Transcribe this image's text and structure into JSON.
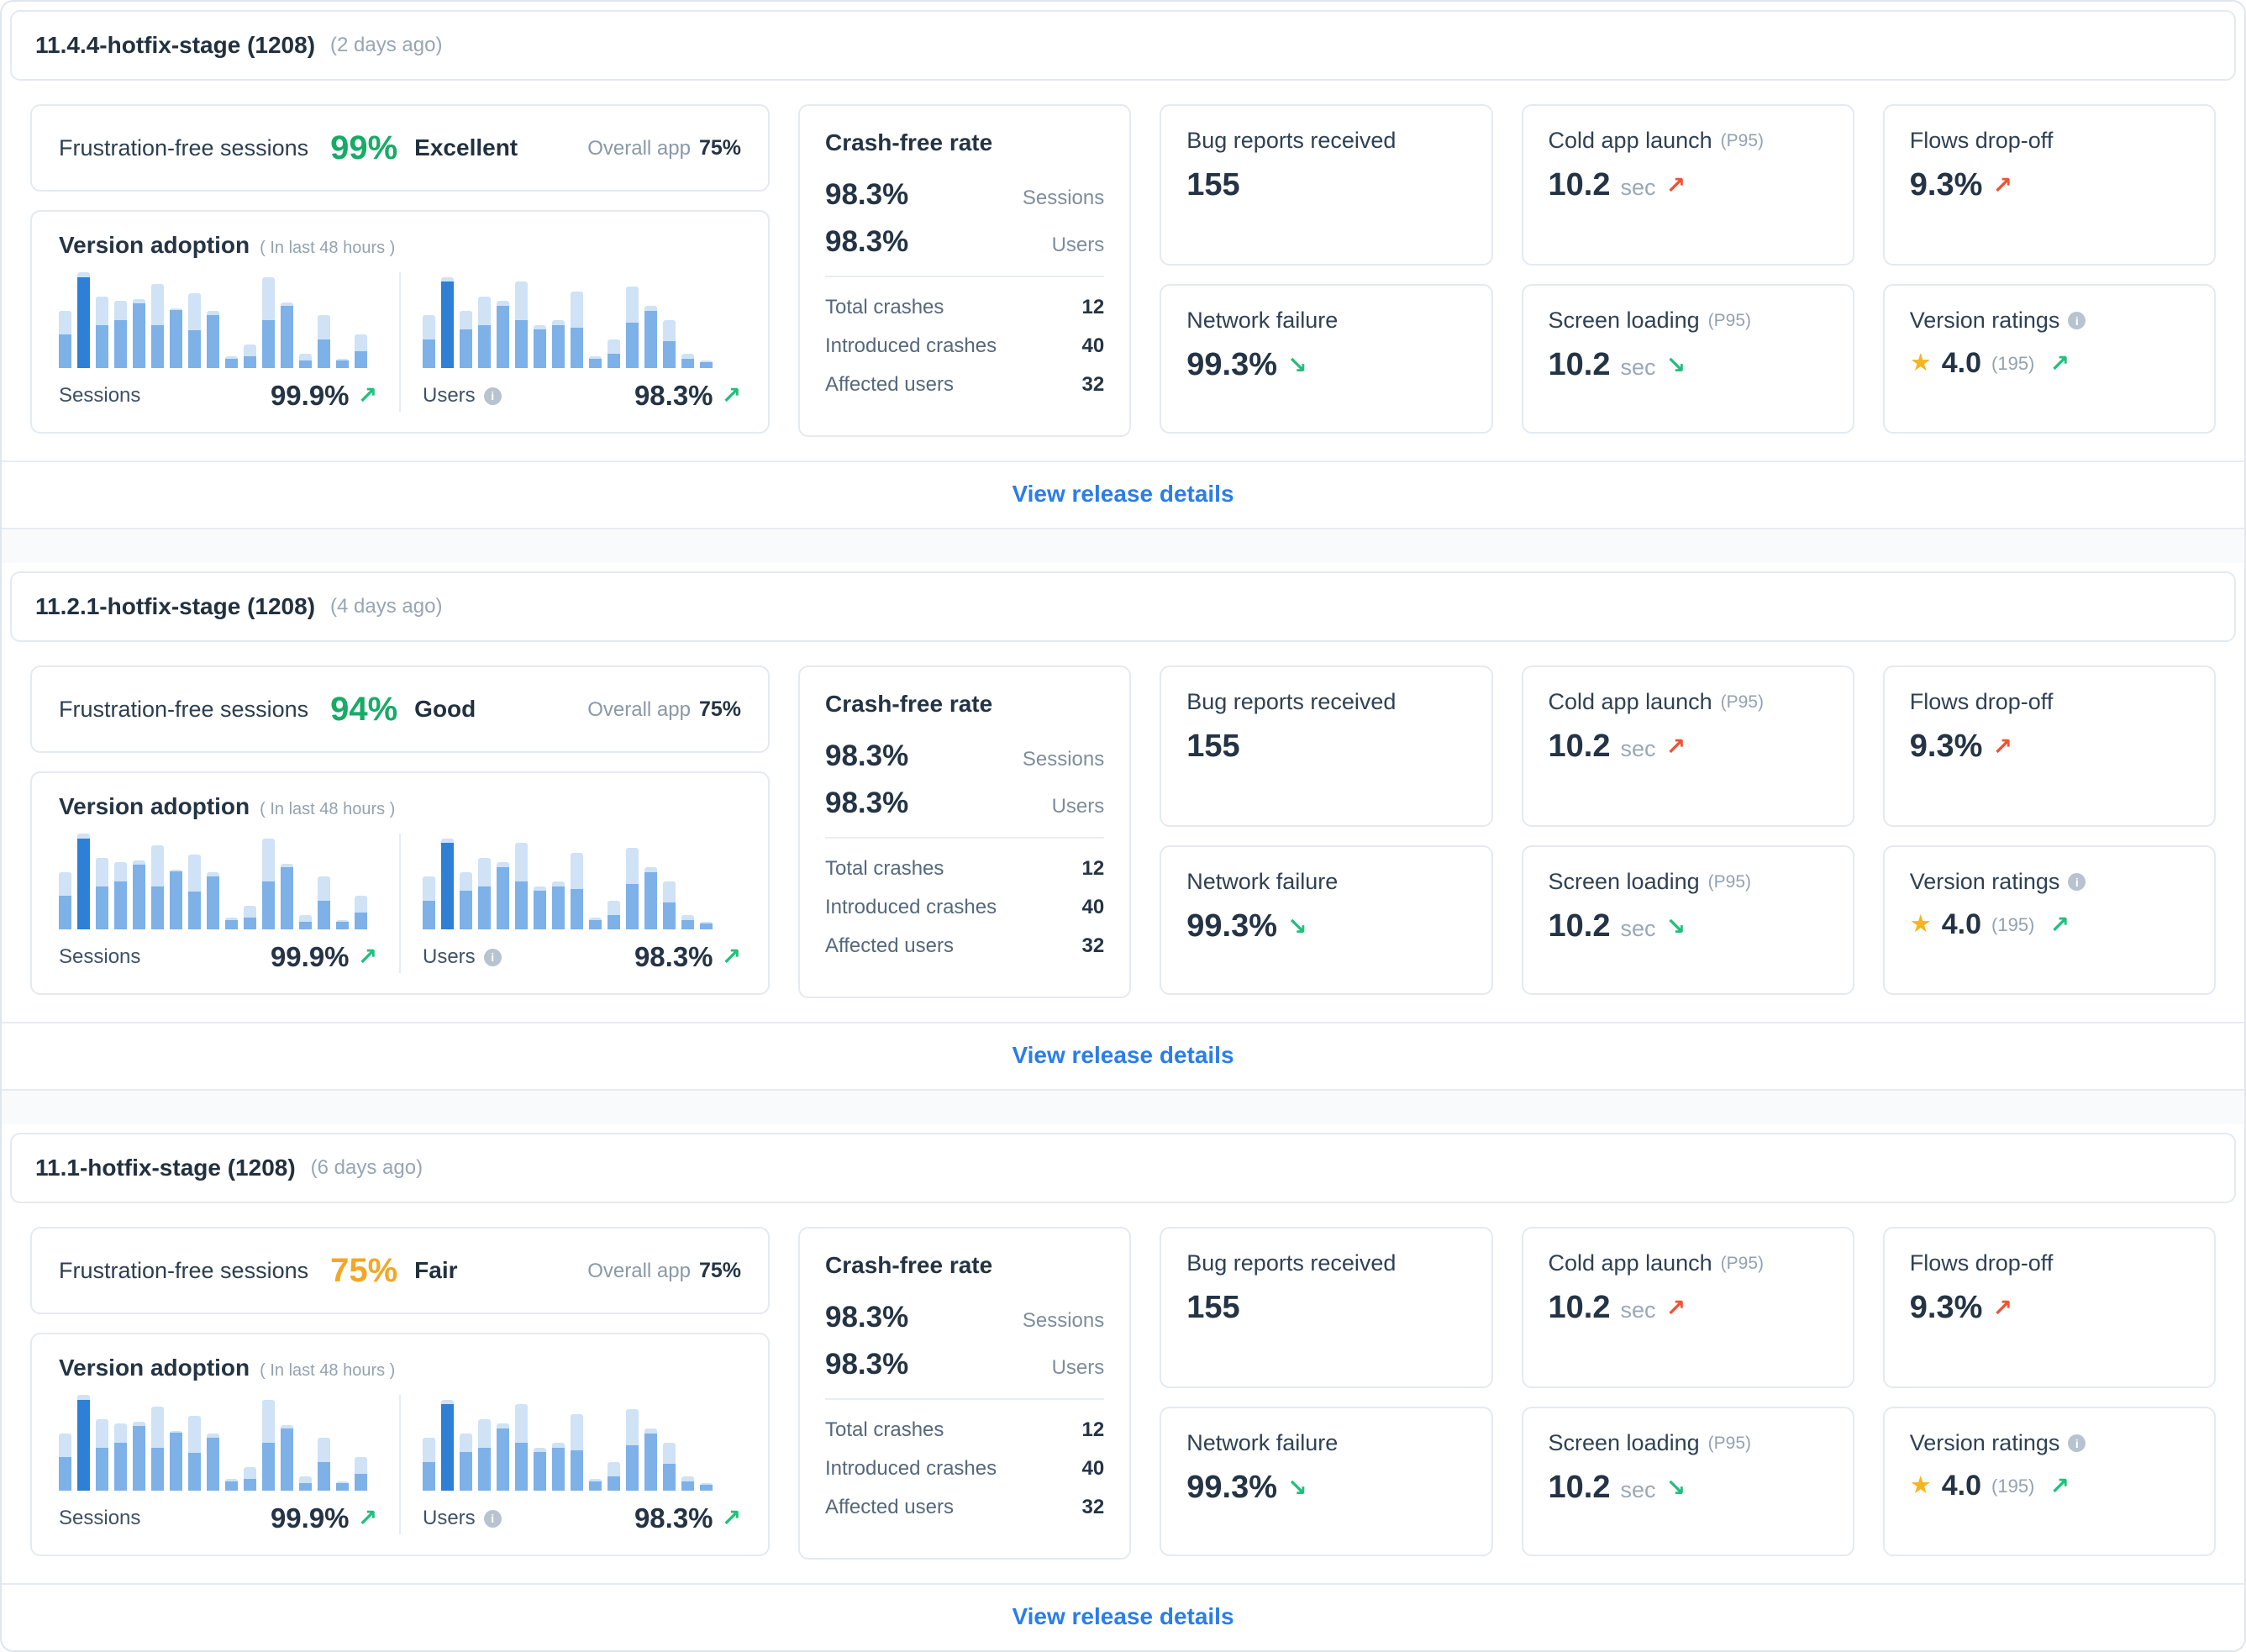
{
  "icons": {
    "info": "i-circle",
    "star": "★",
    "trend_up": "↗",
    "trend_down": "↘"
  },
  "colors": {
    "link_blue": "#2b7de9",
    "positive_green": "#22bf7d",
    "negative_red": "#ee5335",
    "excellent_green": "#17ab66",
    "good_green": "#17ab66",
    "fair_amber": "#f5a623",
    "bar_light": "#cfe2f6",
    "bar_medium": "#7db1e8",
    "bar_dark": "#2e7fd6",
    "star_gold": "#f6b51e"
  },
  "charts": {
    "sessions_bars": [
      [
        60,
        35
      ],
      [
        100,
        95,
        1
      ],
      [
        75,
        45
      ],
      [
        70,
        50
      ],
      [
        72,
        68
      ],
      [
        88,
        45
      ],
      [
        62,
        60
      ],
      [
        78,
        40
      ],
      [
        60,
        55
      ],
      [
        12,
        10
      ],
      [
        25,
        12
      ],
      [
        95,
        50
      ],
      [
        68,
        65
      ],
      [
        15,
        8
      ],
      [
        55,
        30
      ],
      [
        10,
        8
      ],
      [
        35,
        18
      ]
    ],
    "users_bars": [
      [
        55,
        30
      ],
      [
        95,
        90,
        1
      ],
      [
        60,
        40
      ],
      [
        75,
        45
      ],
      [
        70,
        65
      ],
      [
        90,
        50
      ],
      [
        45,
        40
      ],
      [
        50,
        45
      ],
      [
        80,
        42
      ],
      [
        12,
        10
      ],
      [
        30,
        15
      ],
      [
        85,
        48
      ],
      [
        65,
        60
      ],
      [
        50,
        28
      ],
      [
        15,
        10
      ],
      [
        8,
        6
      ]
    ]
  },
  "releases": [
    {
      "title": "11.4.4-hotfix-stage (1208)",
      "time_ago": "(2 days ago)",
      "frustration": {
        "label": "Frustration-free sessions",
        "value": "99%",
        "value_color": "#17ab66",
        "status": "Excellent",
        "overall_label": "Overall app",
        "overall_value": "75%"
      },
      "adoption": {
        "title": "Version adoption",
        "subtitle": "( In last 48 hours )",
        "sessions": {
          "label": "Sessions",
          "value": "99.9%",
          "trend": "up-good"
        },
        "users": {
          "label": "Users",
          "value": "98.3%",
          "trend": "up-good"
        }
      },
      "crash": {
        "title": "Crash-free rate",
        "rates": [
          {
            "value": "98.3%",
            "label": "Sessions"
          },
          {
            "value": "98.3%",
            "label": "Users"
          }
        ],
        "details": [
          {
            "label": "Total crashes",
            "value": "12"
          },
          {
            "label": "Introduced crashes",
            "value": "40"
          },
          {
            "label": "Affected users",
            "value": "32"
          }
        ]
      },
      "metrics": {
        "bug_reports": {
          "label": "Bug reports received",
          "value": "155"
        },
        "network_failure": {
          "label": "Network failure",
          "value": "99.3%",
          "trend": "down-good"
        },
        "cold_launch": {
          "label": "Cold app launch",
          "tag": "(P95)",
          "value": "10.2",
          "unit": "sec",
          "trend": "up-bad"
        },
        "screen_loading": {
          "label": "Screen loading",
          "tag": "(P95)",
          "value": "10.2",
          "unit": "sec",
          "trend": "down-good"
        },
        "flows_dropoff": {
          "label": "Flows drop-off",
          "value": "9.3%",
          "trend": "up-bad"
        },
        "ratings": {
          "label": "Version ratings",
          "value": "4.0",
          "count": "(195)",
          "trend": "up-good"
        }
      },
      "footer_link": "View release details"
    },
    {
      "title": "11.2.1-hotfix-stage (1208)",
      "time_ago": "(4 days ago)",
      "frustration": {
        "label": "Frustration-free sessions",
        "value": "94%",
        "value_color": "#17ab66",
        "status": "Good",
        "overall_label": "Overall app",
        "overall_value": "75%"
      },
      "adoption": {
        "title": "Version adoption",
        "subtitle": "( In last 48 hours )",
        "sessions": {
          "label": "Sessions",
          "value": "99.9%",
          "trend": "up-good"
        },
        "users": {
          "label": "Users",
          "value": "98.3%",
          "trend": "up-good"
        }
      },
      "crash": {
        "title": "Crash-free rate",
        "rates": [
          {
            "value": "98.3%",
            "label": "Sessions"
          },
          {
            "value": "98.3%",
            "label": "Users"
          }
        ],
        "details": [
          {
            "label": "Total crashes",
            "value": "12"
          },
          {
            "label": "Introduced crashes",
            "value": "40"
          },
          {
            "label": "Affected users",
            "value": "32"
          }
        ]
      },
      "metrics": {
        "bug_reports": {
          "label": "Bug reports received",
          "value": "155"
        },
        "network_failure": {
          "label": "Network failure",
          "value": "99.3%",
          "trend": "down-good"
        },
        "cold_launch": {
          "label": "Cold app launch",
          "tag": "(P95)",
          "value": "10.2",
          "unit": "sec",
          "trend": "up-bad"
        },
        "screen_loading": {
          "label": "Screen loading",
          "tag": "(P95)",
          "value": "10.2",
          "unit": "sec",
          "trend": "down-good"
        },
        "flows_dropoff": {
          "label": "Flows drop-off",
          "value": "9.3%",
          "trend": "up-bad"
        },
        "ratings": {
          "label": "Version ratings",
          "value": "4.0",
          "count": "(195)",
          "trend": "up-good"
        }
      },
      "footer_link": "View release details"
    },
    {
      "title": "11.1-hotfix-stage (1208)",
      "time_ago": "(6 days ago)",
      "frustration": {
        "label": "Frustration-free sessions",
        "value": "75%",
        "value_color": "#f5a623",
        "status": "Fair",
        "overall_label": "Overall app",
        "overall_value": "75%"
      },
      "adoption": {
        "title": "Version adoption",
        "subtitle": "( In last 48 hours )",
        "sessions": {
          "label": "Sessions",
          "value": "99.9%",
          "trend": "up-good"
        },
        "users": {
          "label": "Users",
          "value": "98.3%",
          "trend": "up-good"
        }
      },
      "crash": {
        "title": "Crash-free rate",
        "rates": [
          {
            "value": "98.3%",
            "label": "Sessions"
          },
          {
            "value": "98.3%",
            "label": "Users"
          }
        ],
        "details": [
          {
            "label": "Total crashes",
            "value": "12"
          },
          {
            "label": "Introduced crashes",
            "value": "40"
          },
          {
            "label": "Affected users",
            "value": "32"
          }
        ]
      },
      "metrics": {
        "bug_reports": {
          "label": "Bug reports received",
          "value": "155"
        },
        "network_failure": {
          "label": "Network failure",
          "value": "99.3%",
          "trend": "down-good"
        },
        "cold_launch": {
          "label": "Cold app launch",
          "tag": "(P95)",
          "value": "10.2",
          "unit": "sec",
          "trend": "up-bad"
        },
        "screen_loading": {
          "label": "Screen loading",
          "tag": "(P95)",
          "value": "10.2",
          "unit": "sec",
          "trend": "down-good"
        },
        "flows_dropoff": {
          "label": "Flows drop-off",
          "value": "9.3%",
          "trend": "up-bad"
        },
        "ratings": {
          "label": "Version ratings",
          "value": "4.0",
          "count": "(195)",
          "trend": "up-good"
        }
      },
      "footer_link": "View release details"
    }
  ]
}
